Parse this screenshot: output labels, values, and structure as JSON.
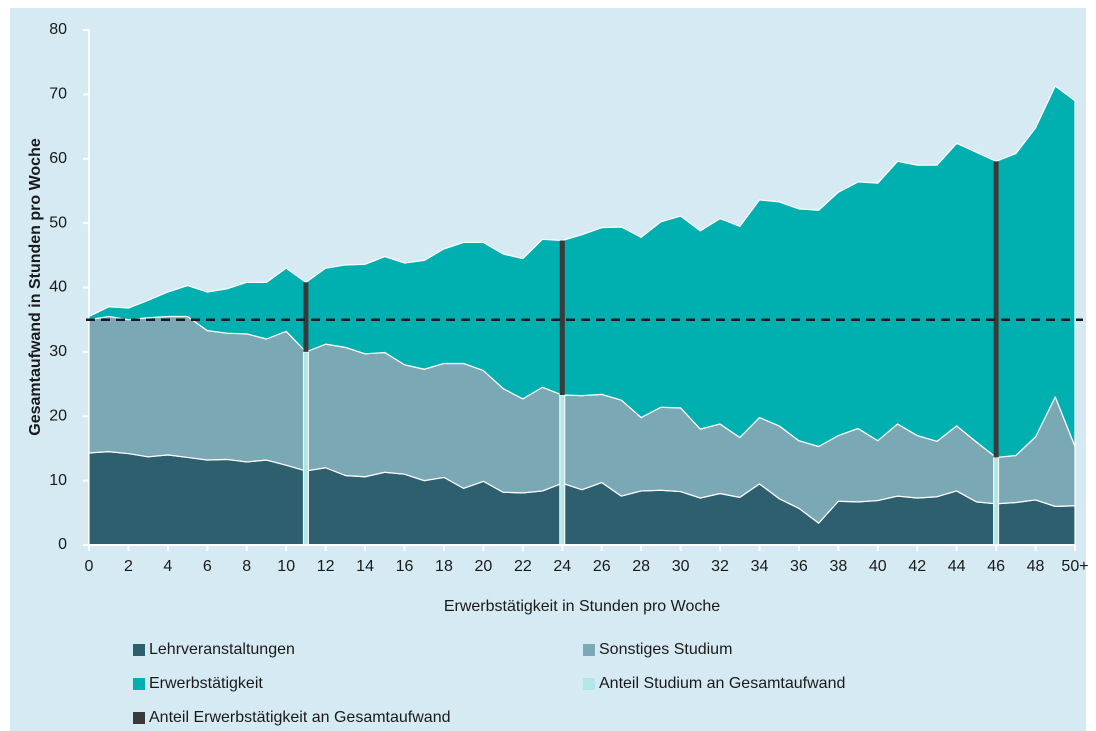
{
  "chart_data": {
    "type": "stacked_area",
    "x_label": "Erwerbstätigkeit in Stunden pro Woche",
    "y_label": "Gesamtaufwand in Stunden pro Woche",
    "x": [
      0,
      1,
      2,
      3,
      4,
      5,
      6,
      7,
      8,
      9,
      10,
      11,
      12,
      13,
      14,
      15,
      16,
      17,
      18,
      19,
      20,
      21,
      22,
      23,
      24,
      25,
      26,
      27,
      28,
      29,
      30,
      31,
      32,
      33,
      34,
      35,
      36,
      37,
      38,
      39,
      40,
      41,
      42,
      43,
      44,
      45,
      46,
      47,
      48,
      49,
      50
    ],
    "series": [
      {
        "name": "Lehrveranstaltungen",
        "color": "#2e5f6e",
        "values": [
          14.3,
          14.5,
          14.2,
          13.7,
          14,
          13.6,
          13.2,
          13.3,
          12.9,
          13.2,
          12.4,
          11.5,
          12,
          10.8,
          10.6,
          11.3,
          11,
          10,
          10.5,
          8.8,
          9.9,
          8.2,
          8.1,
          8.4,
          9.6,
          8.6,
          9.7,
          7.6,
          8.4,
          8.5,
          8.3,
          7.3,
          8,
          7.4,
          9.5,
          7.2,
          5.7,
          3.4,
          6.8,
          6.7,
          6.9,
          7.6,
          7.3,
          7.5,
          8.4,
          6.7,
          6.4,
          6.6,
          7,
          6,
          6.1
        ]
      },
      {
        "name": "Sonstiges Studium",
        "color": "#7aa8b5",
        "values": [
          20.7,
          21.0,
          20.8,
          21.6,
          21.5,
          21.9,
          20.1,
          19.6,
          19.9,
          18.8,
          20.8,
          18.5,
          19.2,
          19.9,
          19.1,
          18.6,
          17.0,
          17.3,
          17.7,
          19.4,
          17.2,
          16.1,
          14.6,
          16.1,
          13.7,
          14.6,
          13.7,
          14.9,
          11.4,
          12.9,
          13.0,
          10.7,
          10.8,
          9.3,
          10.3,
          11.3,
          10.5,
          11.9,
          10.2,
          11.4,
          9.3,
          11.2,
          9.7,
          8.6,
          10.1,
          9.3,
          7.2,
          7.3,
          9.8,
          17.0,
          9.2
        ]
      },
      {
        "name": "Erwerbstätigkeit",
        "color": "#00b0b0",
        "values": [
          0.5,
          1.5,
          1.8,
          2.7,
          3.8,
          4.8,
          6.0,
          6.9,
          8.0,
          8.8,
          9.8,
          10.8,
          11.8,
          12.8,
          13.9,
          14.9,
          15.8,
          16.9,
          17.8,
          18.8,
          19.9,
          20.9,
          21.8,
          23.0,
          24.0,
          25.0,
          25.9,
          26.9,
          28.0,
          28.8,
          29.8,
          30.8,
          31.9,
          32.8,
          33.8,
          34.8,
          36.0,
          36.7,
          37.8,
          38.3,
          40.0,
          40.8,
          42.0,
          42.9,
          43.9,
          45.0,
          46.0,
          46.9,
          48.0,
          48.3,
          53.7
        ]
      }
    ],
    "markers": [
      {
        "name": "Anteil Studium an Gesamtaufwand",
        "color": "#b3e6e6"
      },
      {
        "name": "Anteil Erwerbstätigkeit an Gesamtaufwand",
        "color": "#3a3a3a"
      }
    ],
    "marker_x": [
      11,
      24,
      46
    ],
    "reference_line": 35,
    "xlim": [
      0,
      50
    ],
    "xticks": [
      0,
      2,
      4,
      6,
      8,
      10,
      12,
      14,
      16,
      18,
      20,
      22,
      24,
      26,
      28,
      30,
      32,
      34,
      36,
      38,
      40,
      42,
      44,
      46,
      48,
      {
        "value": 50,
        "label": "50+"
      }
    ],
    "ylim": [
      0,
      80
    ],
    "yticks": [
      0,
      10,
      20,
      30,
      40,
      50,
      60,
      70,
      80
    ]
  }
}
